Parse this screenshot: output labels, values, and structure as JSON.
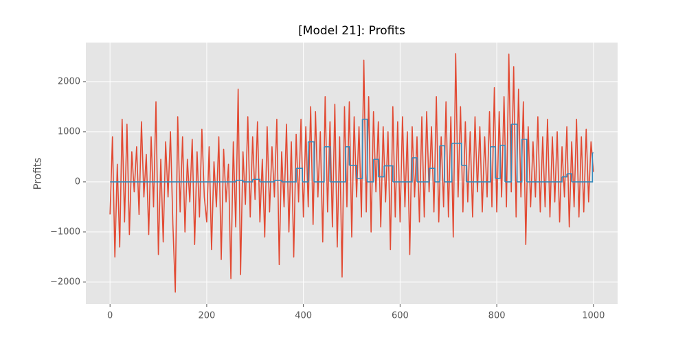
{
  "chart_data": {
    "type": "line",
    "title": "[Model 21]: Profits",
    "y_label": "Profits",
    "xlim": [
      -50,
      1050
    ],
    "xticks": [
      0,
      200,
      400,
      600,
      800,
      1000
    ],
    "ylim": [
      -2440,
      2780
    ],
    "yticks": [
      {
        "value": -2000,
        "label": "−2000"
      },
      {
        "value": -1000,
        "label": "−1000"
      },
      0,
      1000,
      2000
    ],
    "grid": true,
    "series": [
      {
        "color": "#e24a33",
        "drawstyle": "default",
        "x": [
          0,
          5,
          10,
          15,
          20,
          25,
          30,
          35,
          40,
          45,
          50,
          55,
          60,
          65,
          70,
          75,
          80,
          85,
          90,
          95,
          100,
          105,
          110,
          115,
          120,
          125,
          130,
          135,
          140,
          145,
          150,
          155,
          160,
          165,
          170,
          175,
          180,
          185,
          190,
          195,
          200,
          205,
          210,
          215,
          220,
          225,
          230,
          235,
          240,
          245,
          250,
          255,
          260,
          265,
          270,
          275,
          280,
          285,
          290,
          295,
          300,
          305,
          310,
          315,
          320,
          325,
          330,
          335,
          340,
          345,
          350,
          355,
          360,
          365,
          370,
          375,
          380,
          385,
          390,
          395,
          400,
          405,
          410,
          415,
          420,
          425,
          430,
          435,
          440,
          445,
          450,
          455,
          460,
          465,
          470,
          475,
          480,
          485,
          490,
          495,
          500,
          505,
          510,
          515,
          520,
          525,
          530,
          535,
          540,
          545,
          550,
          555,
          560,
          565,
          570,
          575,
          580,
          585,
          590,
          595,
          600,
          605,
          610,
          615,
          620,
          625,
          630,
          635,
          640,
          645,
          650,
          655,
          660,
          665,
          670,
          675,
          680,
          685,
          690,
          695,
          700,
          705,
          710,
          715,
          720,
          725,
          730,
          735,
          740,
          745,
          750,
          755,
          760,
          765,
          770,
          775,
          780,
          785,
          790,
          795,
          800,
          805,
          810,
          815,
          820,
          825,
          830,
          835,
          840,
          845,
          850,
          855,
          860,
          865,
          870,
          875,
          880,
          885,
          890,
          895,
          900,
          905,
          910,
          915,
          920,
          925,
          930,
          935,
          940,
          945,
          950,
          955,
          960,
          965,
          970,
          975,
          980,
          985,
          990,
          995,
          1000
        ],
        "values": [
          -650,
          900,
          -1500,
          350,
          -1300,
          1250,
          -800,
          1150,
          -1050,
          600,
          -200,
          700,
          -650,
          1200,
          -300,
          550,
          -1050,
          900,
          -500,
          1600,
          -1450,
          450,
          -1200,
          800,
          -300,
          1000,
          -850,
          -2200,
          1300,
          -600,
          900,
          -1000,
          450,
          -400,
          850,
          -1250,
          600,
          -700,
          1050,
          -300,
          -800,
          700,
          -1350,
          400,
          -500,
          900,
          -1550,
          650,
          -400,
          350,
          -1930,
          800,
          -900,
          1850,
          -1850,
          600,
          -450,
          1300,
          -700,
          900,
          -350,
          1200,
          -800,
          450,
          -1100,
          1100,
          -600,
          700,
          -300,
          1250,
          -1650,
          600,
          -500,
          1150,
          -1000,
          800,
          -1500,
          950,
          -400,
          1250,
          -700,
          1100,
          -500,
          1500,
          -850,
          1400,
          -300,
          1000,
          -1200,
          1700,
          -600,
          1200,
          -900,
          1550,
          -1300,
          900,
          -1900,
          1500,
          -500,
          1600,
          -1100,
          1300,
          -300,
          1100,
          -700,
          2430,
          -600,
          1700,
          -1000,
          1400,
          -200,
          1200,
          -900,
          1100,
          -400,
          1000,
          -1350,
          1500,
          -700,
          1200,
          -800,
          1300,
          -500,
          1000,
          -1450,
          1100,
          -300,
          900,
          -800,
          1300,
          -700,
          1400,
          -200,
          1100,
          -600,
          1700,
          -800,
          900,
          -500,
          1600,
          -700,
          1300,
          -1100,
          2560,
          -300,
          1500,
          -600,
          1200,
          -400,
          1000,
          -700,
          1300,
          -200,
          1100,
          -600,
          900,
          -300,
          1400,
          -500,
          1880,
          -600,
          1400,
          -300,
          1700,
          -500,
          2550,
          -200,
          2300,
          -700,
          1850,
          -300,
          1600,
          -1250,
          1100,
          -500,
          800,
          -300,
          1300,
          -600,
          900,
          -500,
          1250,
          -700,
          900,
          -400,
          1000,
          -800,
          700,
          -300,
          1100,
          -900,
          800,
          -500,
          1250,
          -700,
          900,
          -600,
          1050,
          -400,
          800,
          200
        ]
      },
      {
        "color": "#348abd",
        "drawstyle": "steps-post",
        "x": [
          0,
          260,
          275,
          295,
          310,
          340,
          355,
          385,
          398,
          410,
          422,
          443,
          455,
          487,
          495,
          510,
          522,
          532,
          545,
          555,
          567,
          585,
          625,
          635,
          660,
          672,
          682,
          692,
          707,
          727,
          737,
          787,
          797,
          807,
          817,
          830,
          842,
          852,
          862,
          935,
          945,
          955,
          998,
          1000
        ],
        "values": [
          0,
          30,
          0,
          50,
          0,
          30,
          0,
          270,
          0,
          800,
          0,
          700,
          0,
          700,
          330,
          70,
          1250,
          0,
          450,
          100,
          320,
          0,
          480,
          0,
          270,
          0,
          720,
          0,
          770,
          330,
          0,
          700,
          70,
          730,
          0,
          1150,
          0,
          850,
          0,
          100,
          160,
          0,
          580,
          580
        ]
      }
    ]
  }
}
